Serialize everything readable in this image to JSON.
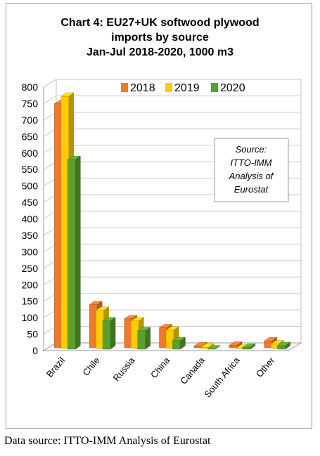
{
  "chart_data": {
    "type": "bar",
    "title_lines": [
      "Chart 4: EU27+UK softwood plywood",
      "imports by source",
      "Jan-Jul 2018-2020, 1000 m3"
    ],
    "categories": [
      "Brazil",
      "Chile",
      "Russia",
      "China",
      "Canada",
      "South Africa",
      "Other"
    ],
    "series": [
      {
        "name": "2018",
        "color": "#f07a2a",
        "values": [
          745,
          135,
          92,
          65,
          10,
          12,
          25
        ]
      },
      {
        "name": "2019",
        "color": "#ffcc00",
        "values": [
          770,
          120,
          88,
          60,
          8,
          5,
          18
        ]
      },
      {
        "name": "2020",
        "color": "#5aa02c",
        "values": [
          580,
          90,
          60,
          30,
          5,
          10,
          15
        ]
      }
    ],
    "ylim": [
      0,
      800
    ],
    "yticks": [
      0,
      50,
      100,
      150,
      200,
      250,
      300,
      350,
      400,
      450,
      500,
      550,
      600,
      650,
      700,
      750,
      800
    ],
    "grid": true,
    "legend_position": "top",
    "annotation": [
      "Source:",
      "ITTO-IMM",
      "Analysis of",
      "Eurostat"
    ]
  },
  "footer_text": "Data source: ITTO-IMM Analysis of Eurostat"
}
